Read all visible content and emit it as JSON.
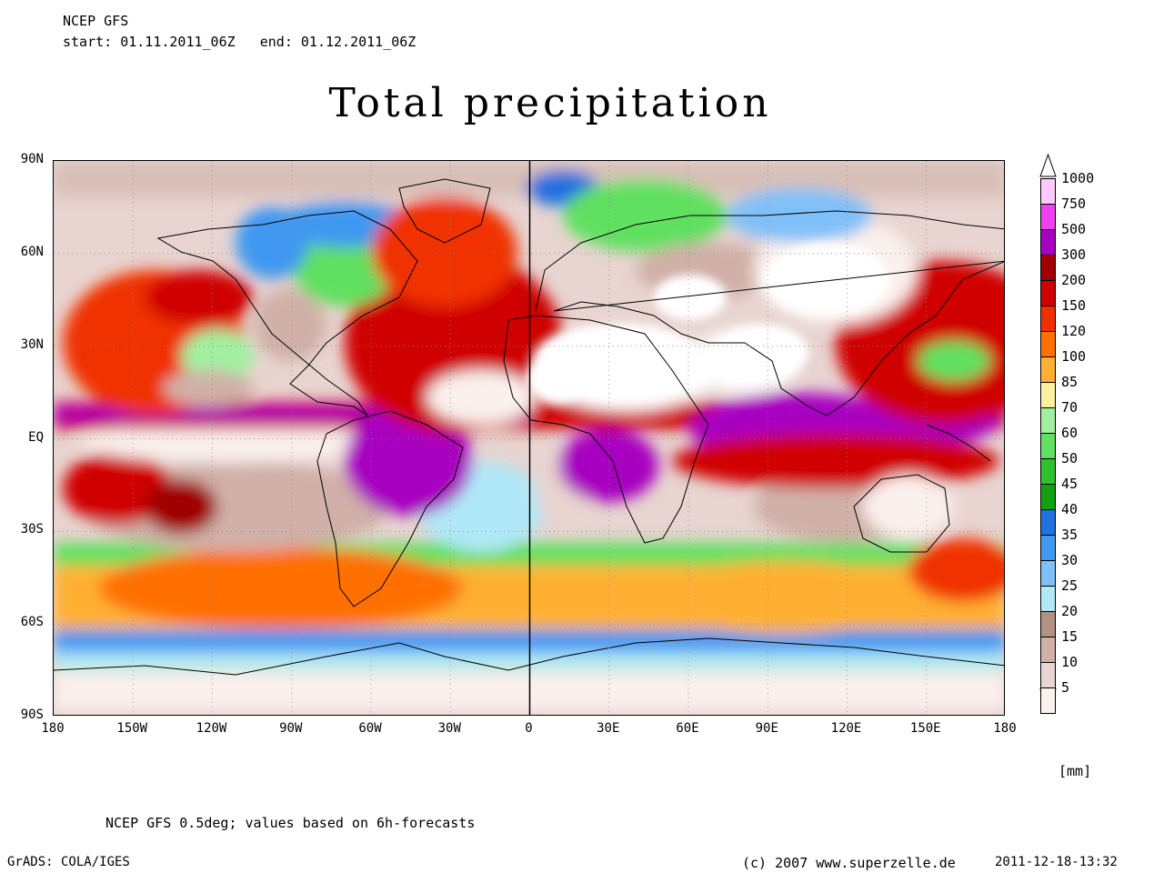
{
  "header": {
    "model": "NCEP GFS",
    "start_label": "start:",
    "start_value": "01.11.2011_06Z",
    "end_label": "end:",
    "end_value": "01.12.2011_06Z"
  },
  "title": "Total precipitation",
  "map": {
    "y_ticks": [
      "90N",
      "60N",
      "30N",
      "EQ",
      "30S",
      "60S",
      "90S"
    ],
    "x_ticks": [
      "180",
      "150W",
      "120W",
      "90W",
      "60W",
      "30W",
      "0",
      "30E",
      "60E",
      "90E",
      "120E",
      "150E",
      "180"
    ],
    "lat_range": [
      -90,
      90
    ],
    "lon_range": [
      -180,
      180
    ],
    "grid": "dotted"
  },
  "legend": {
    "unit": "[mm]",
    "levels": [
      {
        "label": "1000",
        "color": "#ffc8ff"
      },
      {
        "label": "750",
        "color": "#f040f0"
      },
      {
        "label": "500",
        "color": "#a800c0"
      },
      {
        "label": "300",
        "color": "#a00000"
      },
      {
        "label": "200",
        "color": "#d00000"
      },
      {
        "label": "150",
        "color": "#f03000"
      },
      {
        "label": "120",
        "color": "#ff7000"
      },
      {
        "label": "100",
        "color": "#ffb030"
      },
      {
        "label": "85",
        "color": "#fff0a0"
      },
      {
        "label": "70",
        "color": "#a0f0a0"
      },
      {
        "label": "60",
        "color": "#60e060"
      },
      {
        "label": "50",
        "color": "#30c030"
      },
      {
        "label": "45",
        "color": "#10a010"
      },
      {
        "label": "40",
        "color": "#2070e0"
      },
      {
        "label": "35",
        "color": "#4098f0"
      },
      {
        "label": "30",
        "color": "#80c0f8"
      },
      {
        "label": "25",
        "color": "#b0e8f8"
      },
      {
        "label": "20",
        "color": "#b49080"
      },
      {
        "label": "15",
        "color": "#d0b0a8"
      },
      {
        "label": "10",
        "color": "#e8d4d0"
      },
      {
        "label": "5",
        "color": "#faf0ec"
      }
    ]
  },
  "footer": {
    "note": "NCEP GFS 0.5deg; values based on 6h-forecasts",
    "grads": "GrADS: COLA/IGES",
    "copyright": "(c) 2007 www.superzelle.de",
    "timestamp": "2011-12-18-13:32"
  }
}
